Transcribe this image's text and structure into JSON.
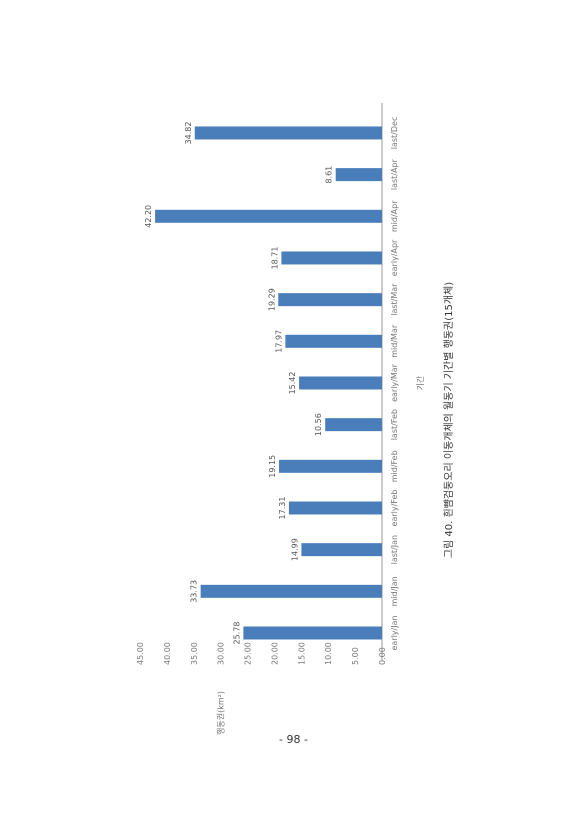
{
  "chart_data": {
    "type": "bar",
    "orientation": "rotated-90-ccw",
    "categories": [
      "early/Jan",
      "mid/Jan",
      "last/Jan",
      "early/Feb",
      "mid/Feb",
      "last/Feb",
      "early/Mar",
      "mid/Mar",
      "last/Mar",
      "early/Apr",
      "mid/Apr",
      "last/Apr",
      "last/Dec"
    ],
    "values": [
      25.78,
      33.73,
      14.99,
      17.31,
      19.15,
      10.56,
      15.42,
      17.97,
      19.29,
      18.71,
      42.2,
      8.61,
      34.82
    ],
    "value_labels": [
      "25.78",
      "33.73",
      "14.99",
      "17.31",
      "19.15",
      "10.56",
      "15.42",
      "17.97",
      "19.29",
      "18.71",
      "42.20",
      "8.61",
      "34.82"
    ],
    "ylim": [
      0,
      45
    ],
    "yticks": [
      "0.00",
      "5.00",
      "10.00",
      "15.00",
      "20.00",
      "25.00",
      "30.00",
      "35.00",
      "40.00",
      "45.00"
    ],
    "xlabel": "기간",
    "ylabel": "행동권(km²)",
    "bar_color": "#4a7ebb",
    "grid": false,
    "legend": "none"
  },
  "caption": "그림 40. 흰뺨검둥오리 이동개체의 월동기 기간별 행동권(15개체)",
  "page_number": "- 98 -"
}
